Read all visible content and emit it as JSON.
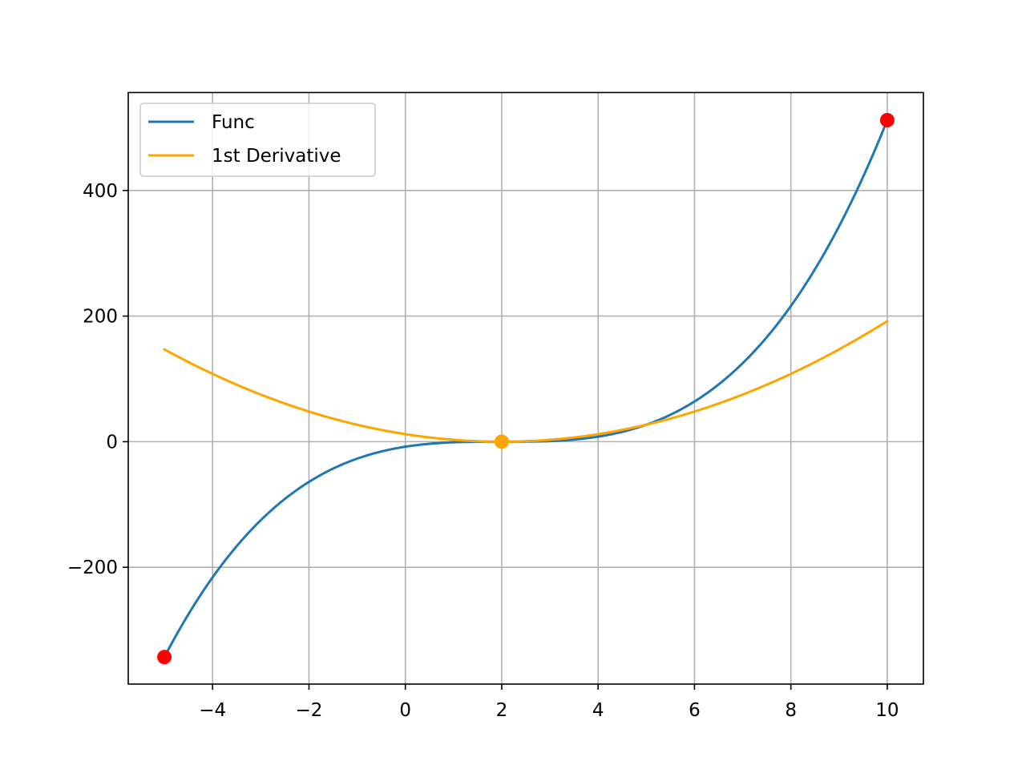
{
  "chart_data": {
    "type": "line",
    "title": "",
    "xlabel": "",
    "ylabel": "",
    "xlim": [
      -5.75,
      10.75
    ],
    "ylim": [
      -386,
      556
    ],
    "grid": true,
    "legend_position": "top-left",
    "x_ticks": [
      -4,
      -2,
      0,
      2,
      4,
      6,
      8,
      10
    ],
    "x_tick_labels": [
      "−4",
      "−2",
      "0",
      "2",
      "4",
      "6",
      "8",
      "10"
    ],
    "y_ticks": [
      -200,
      0,
      200,
      400
    ],
    "y_tick_labels": [
      "−200",
      "0",
      "200",
      "400"
    ],
    "series": [
      {
        "name": "Func",
        "color": "#1f77b4",
        "expression": "(x - 2)^3",
        "x_range": [
          -5,
          10
        ],
        "samples": [
          {
            "x": -5,
            "y": -343
          },
          {
            "x": -4,
            "y": -216
          },
          {
            "x": -2,
            "y": -64
          },
          {
            "x": 0,
            "y": -8
          },
          {
            "x": 2,
            "y": 0
          },
          {
            "x": 4,
            "y": 8
          },
          {
            "x": 6,
            "y": 64
          },
          {
            "x": 8,
            "y": 216
          },
          {
            "x": 10,
            "y": 512
          }
        ]
      },
      {
        "name": "1st Derivative",
        "color": "#ffa500",
        "expression": "3 * (x - 2)^2",
        "x_range": [
          -5,
          10
        ],
        "samples": [
          {
            "x": -5,
            "y": 147
          },
          {
            "x": -4,
            "y": 108
          },
          {
            "x": -2,
            "y": 48
          },
          {
            "x": 0,
            "y": 12
          },
          {
            "x": 2,
            "y": 0
          },
          {
            "x": 4,
            "y": 12
          },
          {
            "x": 6,
            "y": 48
          },
          {
            "x": 8,
            "y": 108
          },
          {
            "x": 10,
            "y": 192
          }
        ]
      }
    ],
    "markers": [
      {
        "x": -5,
        "y": -343,
        "color": "#ff0000"
      },
      {
        "x": 10,
        "y": 512,
        "color": "#ff0000"
      },
      {
        "x": 2,
        "y": 0,
        "color": "#ffa500"
      }
    ]
  }
}
